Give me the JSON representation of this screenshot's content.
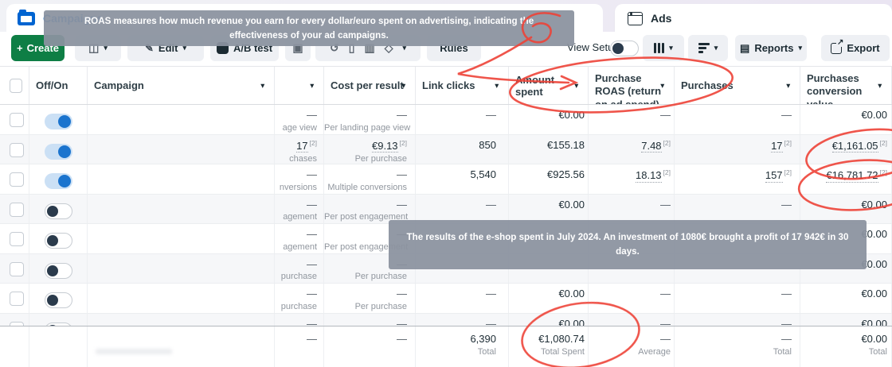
{
  "tabs": {
    "campaigns": "Campaigns",
    "ads": "Ads"
  },
  "toolbar": {
    "create": "Create",
    "edit": "Edit",
    "ab_test": "A/B test",
    "rules": "Rules",
    "view_setup": "View Setup",
    "reports": "Reports",
    "export": "Export"
  },
  "tooltips": {
    "roas": "ROAS measures how much revenue you earn for every dollar/euro spent on advertising, indicating the effectiveness of your ad campaigns.",
    "results": "The results of the e-shop spent in July 2024. An investment of 1080€ brought a profit of 17 942€ in 30 days."
  },
  "icons": {
    "campaigns_tab": "folder-icon",
    "ads_tab": "window-icon",
    "duplicate": "◫",
    "edit": "✎",
    "archive": "▣",
    "undo": "↺",
    "delete": "▯",
    "chart": "▥",
    "favourite": "◇",
    "caret": "▾",
    "reports": "▤"
  },
  "table": {
    "headers": [
      {
        "id": "check",
        "label": "",
        "caret": false
      },
      {
        "id": "toggle",
        "label": "Off/On",
        "caret": false
      },
      {
        "id": "campaign",
        "label": "Campaign",
        "caret": true
      },
      {
        "id": "results",
        "label": "",
        "caret": true
      },
      {
        "id": "cost",
        "label": "Cost per result",
        "caret": true
      },
      {
        "id": "links",
        "label": "Link clicks",
        "caret": true
      },
      {
        "id": "amount",
        "label": "Amount spent",
        "caret": true
      },
      {
        "id": "roas",
        "label": "Purchase ROAS (return on ad spend)",
        "caret": true
      },
      {
        "id": "purchases",
        "label": "Purchases",
        "caret": true
      },
      {
        "id": "conv",
        "label": "Purchases conversion value",
        "caret": true
      }
    ],
    "rows": [
      {
        "toggle": "on",
        "results": {
          "v": "—",
          "sub": "age view"
        },
        "cost": {
          "v": "—",
          "sub": "Per landing page view"
        },
        "links": "—",
        "amount": "€0.00",
        "roas": {
          "v": "—"
        },
        "purchases": {
          "v": "—"
        },
        "conv": {
          "v": "€0.00"
        }
      },
      {
        "toggle": "on",
        "results": {
          "v": "17",
          "sub": "chases",
          "ref": "2"
        },
        "cost": {
          "v": "€9.13",
          "sub": "Per purchase",
          "ref": "2"
        },
        "links": "850",
        "amount": "€155.18",
        "roas": {
          "v": "7.48",
          "ref": "2"
        },
        "purchases": {
          "v": "17",
          "ref": "2"
        },
        "conv": {
          "v": "€1,161.05",
          "ref": "2"
        }
      },
      {
        "toggle": "on",
        "results": {
          "v": "—",
          "sub": "nversions"
        },
        "cost": {
          "v": "—",
          "sub": "Multiple conversions"
        },
        "links": "5,540",
        "amount": "€925.56",
        "roas": {
          "v": "18.13",
          "ref": "2"
        },
        "purchases": {
          "v": "157",
          "ref": "2"
        },
        "conv": {
          "v": "€16,781.72",
          "ref": "2"
        }
      },
      {
        "toggle": "off",
        "results": {
          "v": "—",
          "sub": "agement"
        },
        "cost": {
          "v": "—",
          "sub": "Per post engagement"
        },
        "links": "—",
        "amount": "€0.00",
        "roas": {
          "v": "—"
        },
        "purchases": {
          "v": "—"
        },
        "conv": {
          "v": "€0.00"
        }
      },
      {
        "toggle": "off",
        "results": {
          "v": "—",
          "sub": "agement"
        },
        "cost": {
          "v": "—",
          "sub": "Per post engagement"
        },
        "links": "",
        "amount": "",
        "roas": {
          "v": ""
        },
        "purchases": {
          "v": ""
        },
        "conv": {
          "v": "€0.00"
        }
      },
      {
        "toggle": "off",
        "results": {
          "v": "—",
          "sub": "purchase"
        },
        "cost": {
          "v": "—",
          "sub": "Per purchase"
        },
        "links": "",
        "amount": "",
        "roas": {
          "v": ""
        },
        "purchases": {
          "v": ""
        },
        "conv": {
          "v": "€0.00"
        }
      },
      {
        "toggle": "off",
        "results": {
          "v": "—",
          "sub": "purchase"
        },
        "cost": {
          "v": "—",
          "sub": "Per purchase"
        },
        "links": "—",
        "amount": "€0.00",
        "roas": {
          "v": "—"
        },
        "purchases": {
          "v": "—"
        },
        "conv": {
          "v": "€0.00"
        }
      },
      {
        "toggle": "off",
        "results": {
          "v": "—",
          "sub": ""
        },
        "cost": {
          "v": "—",
          "sub": ""
        },
        "links": "—",
        "amount": "€0.00",
        "roas": {
          "v": "—"
        },
        "purchases": {
          "v": "—"
        },
        "conv": {
          "v": "€0.00"
        }
      }
    ],
    "totals": {
      "results": {
        "v": "—",
        "sub": ""
      },
      "cost": {
        "v": "—",
        "sub": ""
      },
      "links": {
        "v": "6,390",
        "sub": "Total"
      },
      "amount": {
        "v": "€1,080.74",
        "sub": "Total Spent"
      },
      "roas": {
        "v": "—",
        "sub": "Average"
      },
      "purchases": {
        "v": "—",
        "sub": "Total"
      },
      "conv": {
        "v": "€0.00",
        "sub": "Total"
      }
    }
  },
  "colors": {
    "accent_green": "#0e7e45",
    "toggle_on_blue": "#1b74ce",
    "annotation_red": "#ee4237",
    "tooltip_gray": "#8b939f",
    "tab_link_blue": "#0064d1"
  }
}
